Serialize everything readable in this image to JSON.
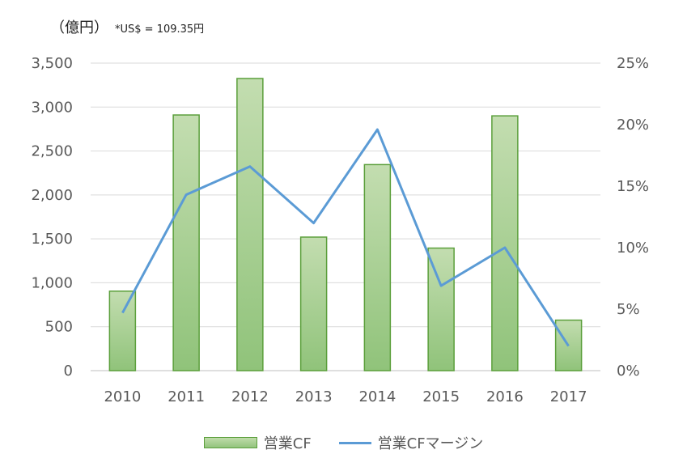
{
  "chart_data": {
    "type": "bar",
    "categories": [
      "2010",
      "2011",
      "2012",
      "2013",
      "2014",
      "2015",
      "2016",
      "2017"
    ],
    "series": [
      {
        "name": "営業CF",
        "type": "bar",
        "axis": "left",
        "values": [
          905,
          2910,
          3325,
          1520,
          2345,
          1395,
          2900,
          575
        ],
        "color": "#a9d18e",
        "border": "#5b9f3b"
      },
      {
        "name": "営業CFマージン",
        "type": "line",
        "axis": "right",
        "values": [
          4.7,
          14.3,
          16.6,
          12.0,
          19.6,
          6.9,
          10.0,
          2.0
        ],
        "color": "#5b9bd5"
      }
    ],
    "unit_label": "（億円）",
    "note": "*US$ = 109.35円",
    "y_left": {
      "min": 0,
      "max": 3500,
      "step": 500,
      "ticks": [
        "0",
        "500",
        "1,000",
        "1,500",
        "2,000",
        "2,500",
        "3,000",
        "3,500"
      ]
    },
    "y_right": {
      "min": 0,
      "max": 25,
      "step": 5,
      "ticks": [
        "0%",
        "5%",
        "10%",
        "15%",
        "20%",
        "25%"
      ]
    },
    "grid": true,
    "legend_position": "bottom"
  }
}
